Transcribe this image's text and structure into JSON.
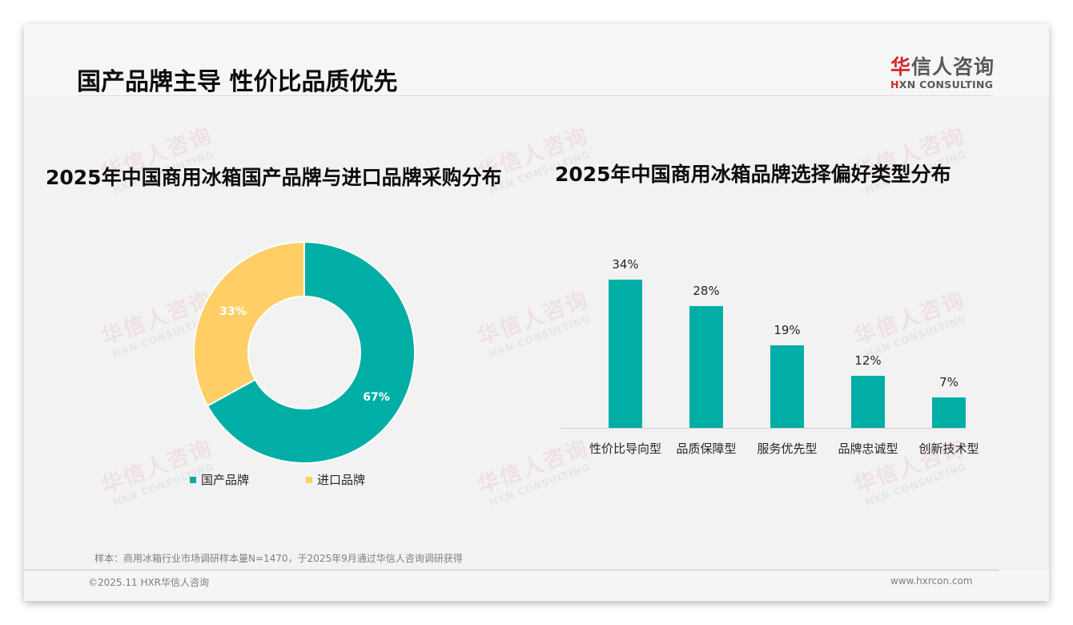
{
  "header": {
    "title": "国产品牌主导 性价比品质优先",
    "logo_cn_first": "华",
    "logo_cn_rest": "信人咨询",
    "logo_en_first": "H",
    "logo_en_rest": "XN CONSULTING"
  },
  "watermark": {
    "cn": "华信人咨询",
    "en": "HXN CONSULTING"
  },
  "colors": {
    "teal": "#00aea6",
    "yellow": "#ffcf66",
    "logo_red": "#d7262b"
  },
  "left_chart": {
    "title": "2025年中国商用冰箱国产品牌与进口品牌采购分布",
    "legend": [
      {
        "label": "国产品牌",
        "color": "#00aea6"
      },
      {
        "label": "进口品牌",
        "color": "#ffcf66"
      }
    ],
    "labels": [
      "67%",
      "33%"
    ]
  },
  "right_chart": {
    "title": "2025年中国商用冰箱品牌选择偏好类型分布",
    "bars": [
      {
        "label": "性价比导向型",
        "value_label": "34%"
      },
      {
        "label": "品质保障型",
        "value_label": "28%"
      },
      {
        "label": "服务优先型",
        "value_label": "19%"
      },
      {
        "label": "品牌忠诚型",
        "value_label": "12%"
      },
      {
        "label": "创新技术型",
        "value_label": "7%"
      }
    ]
  },
  "chart_data": [
    {
      "type": "pie",
      "variant": "donut",
      "title": "2025年中国商用冰箱国产品牌与进口品牌采购分布",
      "categories": [
        "国产品牌",
        "进口品牌"
      ],
      "values": [
        67,
        33
      ],
      "unit": "%",
      "colors": [
        "#00aea6",
        "#ffcf66"
      ],
      "legend_position": "bottom"
    },
    {
      "type": "bar",
      "title": "2025年中国商用冰箱品牌选择偏好类型分布",
      "categories": [
        "性价比导向型",
        "品质保障型",
        "服务优先型",
        "品牌忠诚型",
        "创新技术型"
      ],
      "values": [
        34,
        28,
        19,
        12,
        7
      ],
      "unit": "%",
      "xlabel": "",
      "ylabel": "",
      "ylim": [
        0,
        40
      ],
      "grid": false,
      "color": "#00aea6",
      "data_labels": true
    }
  ],
  "footer": {
    "note": "样本：商用冰箱行业市场调研样本量N=1470，于2025年9月通过华信人咨询调研获得",
    "copyright": "©2025.11 HXR华信人咨询",
    "website": "www.hxrcon.com"
  }
}
